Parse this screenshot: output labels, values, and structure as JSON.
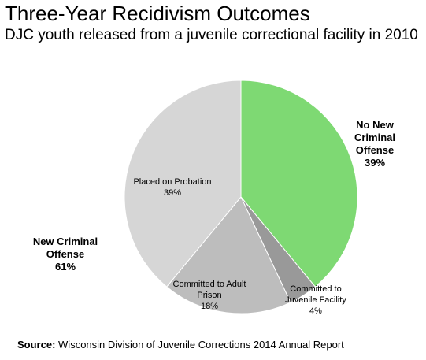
{
  "chart_data": {
    "type": "pie",
    "title": "Three-Year Recidivism Outcomes",
    "subtitle": "DJC youth released from a juvenile correctional facility in 2010",
    "slices": [
      {
        "label_lines": [
          "No New",
          "Criminal",
          "Offense"
        ],
        "pct_label": "39%",
        "value": 39,
        "color": "#7ed973",
        "label_style": "bold"
      },
      {
        "label_lines": [
          "Committed to",
          "Juvenile Facility"
        ],
        "pct_label": "4%",
        "value": 4,
        "color": "#999999",
        "label_style": "normal"
      },
      {
        "label_lines": [
          "Committed to Adult",
          "Prison"
        ],
        "pct_label": "18%",
        "value": 18,
        "color": "#bdbdbd",
        "label_style": "normal"
      },
      {
        "label_lines": [
          "Placed on Probation"
        ],
        "pct_label": "39%",
        "value": 39,
        "color": "#d6d6d6",
        "label_style": "normal"
      }
    ],
    "group_labels": [
      {
        "label_lines": [
          "New Criminal",
          "Offense"
        ],
        "pct_label": "61%"
      }
    ]
  },
  "source": {
    "prefix": "Source:",
    "text": "Wisconsin Division of Juvenile Corrections 2014 Annual Report"
  }
}
